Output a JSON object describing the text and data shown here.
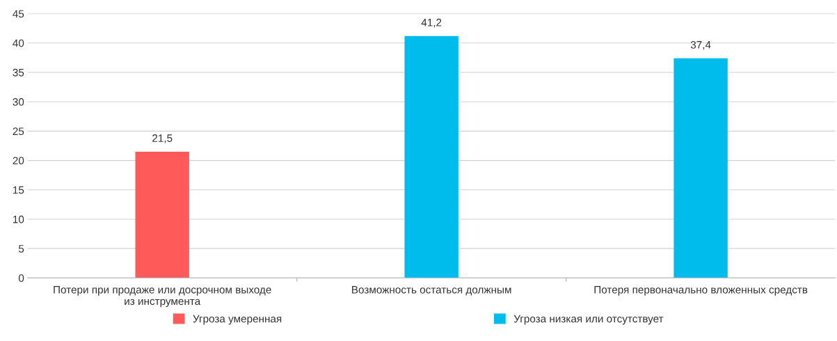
{
  "chart_data": {
    "type": "bar",
    "categories": [
      "Потери при продаже или досрочном выходе\nиз инструмента",
      "Возможность остаться должным",
      "Потеря первоначально вложенных средств"
    ],
    "series": [
      {
        "name": "Угроза умеренная",
        "color": "#ff5a5a",
        "values": [
          21.5,
          null,
          null
        ],
        "value_labels": [
          "21,5",
          null,
          null
        ]
      },
      {
        "name": "Угроза низкая или отсутствует",
        "color": "#00bcec",
        "values": [
          null,
          41.2,
          37.4
        ],
        "value_labels": [
          null,
          "41,2",
          "37,4"
        ]
      }
    ],
    "ylim": [
      0,
      45
    ],
    "yticks": [
      0,
      5,
      10,
      15,
      20,
      25,
      30,
      35,
      40,
      45
    ],
    "grid": "y",
    "legend": "bottom"
  }
}
